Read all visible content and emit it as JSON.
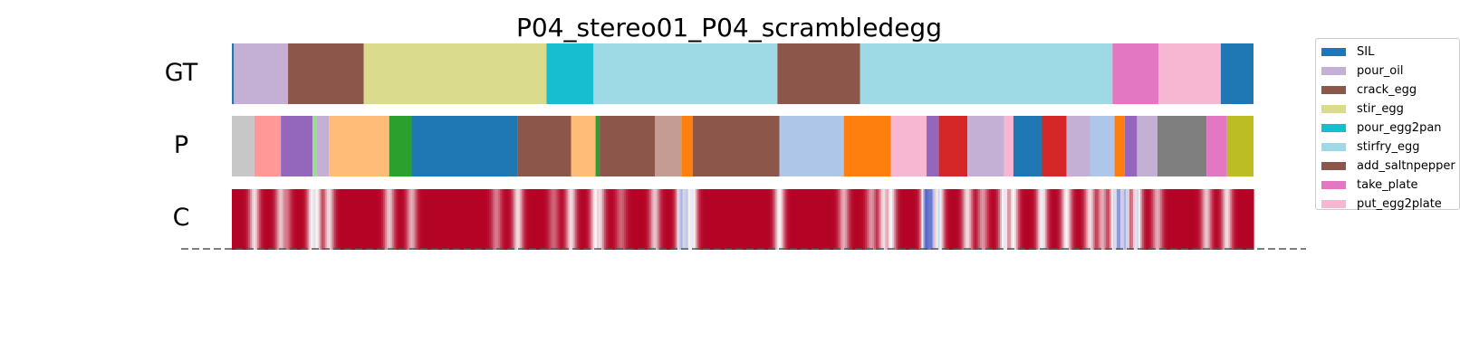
{
  "chart_data": {
    "type": "segmentation",
    "title": "P04_stereo01_P04_scrambledegg",
    "row_labels": [
      "GT",
      "P",
      "C"
    ],
    "timeline": [
      0,
      1
    ],
    "legend": [
      {
        "label": "SIL",
        "color": "#1f77b4"
      },
      {
        "label": "pour_oil",
        "color": "#c5b0d5"
      },
      {
        "label": "crack_egg",
        "color": "#8c564b"
      },
      {
        "label": "stir_egg",
        "color": "#dbdb8d"
      },
      {
        "label": "pour_egg2pan",
        "color": "#17becf"
      },
      {
        "label": "stirfry_egg",
        "color": "#9edae5"
      },
      {
        "label": "add_saltnpepper",
        "color": "#8c564b"
      },
      {
        "label": "take_plate",
        "color": "#e377c2"
      },
      {
        "label": "put_egg2plate",
        "color": "#f7b6d2"
      }
    ],
    "gt_segments": [
      {
        "start": 0.0,
        "end": 0.002,
        "color": "#1f77b4"
      },
      {
        "start": 0.002,
        "end": 0.055,
        "color": "#c5b0d5"
      },
      {
        "start": 0.055,
        "end": 0.129,
        "color": "#8c564b"
      },
      {
        "start": 0.129,
        "end": 0.308,
        "color": "#dbdb8d"
      },
      {
        "start": 0.308,
        "end": 0.354,
        "color": "#17becf"
      },
      {
        "start": 0.354,
        "end": 0.534,
        "color": "#9edae5"
      },
      {
        "start": 0.534,
        "end": 0.615,
        "color": "#8c564b"
      },
      {
        "start": 0.615,
        "end": 0.862,
        "color": "#9edae5"
      },
      {
        "start": 0.862,
        "end": 0.907,
        "color": "#e377c2"
      },
      {
        "start": 0.907,
        "end": 0.968,
        "color": "#f7b6d2"
      },
      {
        "start": 0.968,
        "end": 1.0,
        "color": "#1f77b4"
      }
    ],
    "pred_segments": [
      {
        "start": 0.0,
        "end": 0.022,
        "color": "#c7c7c7"
      },
      {
        "start": 0.022,
        "end": 0.048,
        "color": "#ff9896"
      },
      {
        "start": 0.048,
        "end": 0.079,
        "color": "#9467bd"
      },
      {
        "start": 0.079,
        "end": 0.083,
        "color": "#98df8a"
      },
      {
        "start": 0.083,
        "end": 0.095,
        "color": "#c5b0d5"
      },
      {
        "start": 0.095,
        "end": 0.154,
        "color": "#ffbb78"
      },
      {
        "start": 0.154,
        "end": 0.176,
        "color": "#2ca02c"
      },
      {
        "start": 0.176,
        "end": 0.28,
        "color": "#1f77b4"
      },
      {
        "start": 0.28,
        "end": 0.332,
        "color": "#8c564b"
      },
      {
        "start": 0.332,
        "end": 0.356,
        "color": "#ffbb78"
      },
      {
        "start": 0.356,
        "end": 0.36,
        "color": "#2ca02c"
      },
      {
        "start": 0.36,
        "end": 0.414,
        "color": "#8c564b"
      },
      {
        "start": 0.414,
        "end": 0.44,
        "color": "#c49c94"
      },
      {
        "start": 0.44,
        "end": 0.451,
        "color": "#ff7f0e"
      },
      {
        "start": 0.451,
        "end": 0.536,
        "color": "#8c564b"
      },
      {
        "start": 0.536,
        "end": 0.599,
        "color": "#aec7e8"
      },
      {
        "start": 0.599,
        "end": 0.645,
        "color": "#ff7f0e"
      },
      {
        "start": 0.645,
        "end": 0.68,
        "color": "#f7b6d2"
      },
      {
        "start": 0.68,
        "end": 0.692,
        "color": "#9467bd"
      },
      {
        "start": 0.692,
        "end": 0.72,
        "color": "#d62728"
      },
      {
        "start": 0.72,
        "end": 0.756,
        "color": "#c5b0d5"
      },
      {
        "start": 0.756,
        "end": 0.765,
        "color": "#f7b6d2"
      },
      {
        "start": 0.765,
        "end": 0.793,
        "color": "#1f77b4"
      },
      {
        "start": 0.793,
        "end": 0.817,
        "color": "#d62728"
      },
      {
        "start": 0.817,
        "end": 0.84,
        "color": "#c5b0d5"
      },
      {
        "start": 0.84,
        "end": 0.864,
        "color": "#aec7e8"
      },
      {
        "start": 0.864,
        "end": 0.874,
        "color": "#ff7f0e"
      },
      {
        "start": 0.874,
        "end": 0.886,
        "color": "#9467bd"
      },
      {
        "start": 0.886,
        "end": 0.906,
        "color": "#c5b0d5"
      },
      {
        "start": 0.906,
        "end": 0.954,
        "color": "#7f7f7f"
      },
      {
        "start": 0.954,
        "end": 0.974,
        "color": "#e377c2"
      },
      {
        "start": 0.974,
        "end": 1.0,
        "color": "#bcbd22"
      }
    ],
    "confidence_cmap": [
      "#3b4cc0",
      "#f7f7f7",
      "#b40426"
    ],
    "confidence_dips": [
      {
        "t": 0.022,
        "v": 0.55
      },
      {
        "t": 0.048,
        "v": 0.6
      },
      {
        "t": 0.053,
        "v": 0.75
      },
      {
        "t": 0.079,
        "v": 0.45
      },
      {
        "t": 0.083,
        "v": 0.5
      },
      {
        "t": 0.095,
        "v": 0.55
      },
      {
        "t": 0.154,
        "v": 0.6
      },
      {
        "t": 0.176,
        "v": 0.65
      },
      {
        "t": 0.259,
        "v": 0.75
      },
      {
        "t": 0.28,
        "v": 0.55
      },
      {
        "t": 0.315,
        "v": 0.8
      },
      {
        "t": 0.332,
        "v": 0.55
      },
      {
        "t": 0.356,
        "v": 0.5
      },
      {
        "t": 0.36,
        "v": 0.55
      },
      {
        "t": 0.381,
        "v": 0.8
      },
      {
        "t": 0.414,
        "v": 0.6
      },
      {
        "t": 0.44,
        "v": 0.3
      },
      {
        "t": 0.445,
        "v": 0.35
      },
      {
        "t": 0.451,
        "v": 0.45
      },
      {
        "t": 0.536,
        "v": 0.5
      },
      {
        "t": 0.599,
        "v": 0.65
      },
      {
        "t": 0.626,
        "v": 0.7
      },
      {
        "t": 0.638,
        "v": 0.55
      },
      {
        "t": 0.645,
        "v": 0.5
      },
      {
        "t": 0.68,
        "v": 0.05
      },
      {
        "t": 0.684,
        "v": 0.1
      },
      {
        "t": 0.692,
        "v": 0.4
      },
      {
        "t": 0.72,
        "v": 0.55
      },
      {
        "t": 0.735,
        "v": 0.7
      },
      {
        "t": 0.756,
        "v": 0.45
      },
      {
        "t": 0.765,
        "v": 0.5
      },
      {
        "t": 0.793,
        "v": 0.45
      },
      {
        "t": 0.817,
        "v": 0.5
      },
      {
        "t": 0.84,
        "v": 0.55
      },
      {
        "t": 0.852,
        "v": 0.65
      },
      {
        "t": 0.864,
        "v": 0.4
      },
      {
        "t": 0.868,
        "v": 0.2
      },
      {
        "t": 0.874,
        "v": 0.3
      },
      {
        "t": 0.886,
        "v": 0.4
      },
      {
        "t": 0.906,
        "v": 0.65
      },
      {
        "t": 0.954,
        "v": 0.6
      },
      {
        "t": 0.974,
        "v": 0.55
      }
    ]
  }
}
